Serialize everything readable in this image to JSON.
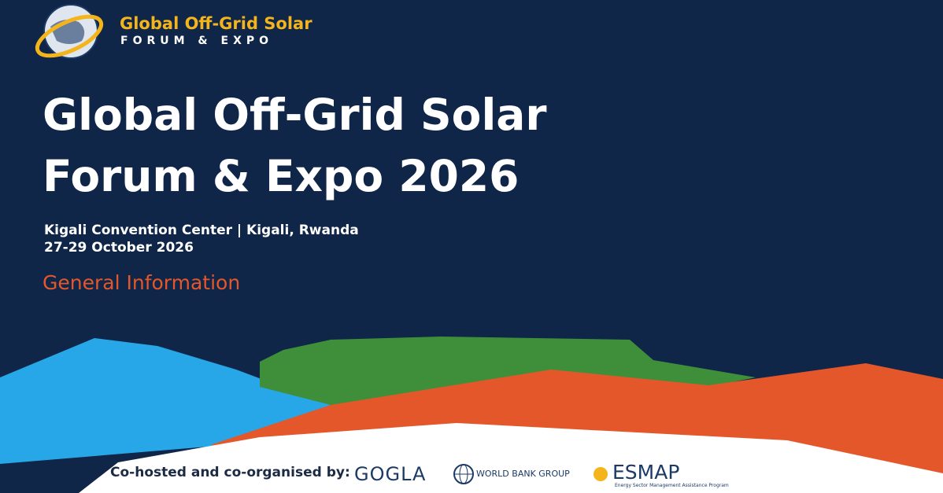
{
  "logo": {
    "title": "Global Off-Grid Solar",
    "subtitle": "FORUM & EXPO"
  },
  "heading": {
    "line1": "Global Off-Grid Solar",
    "line2": "Forum & Expo 2026"
  },
  "venue": "Kigali Convention Center | Kigali, Rwanda",
  "date": "27-29 October 2026",
  "section": "General Information",
  "footer": {
    "label": "Co-hosted and co-organised by:",
    "partners": [
      "GOGLA",
      "WORLD BANK GROUP",
      "ESMAP"
    ],
    "esmap_subtitle": "Energy Sector Management Assistance Program"
  }
}
